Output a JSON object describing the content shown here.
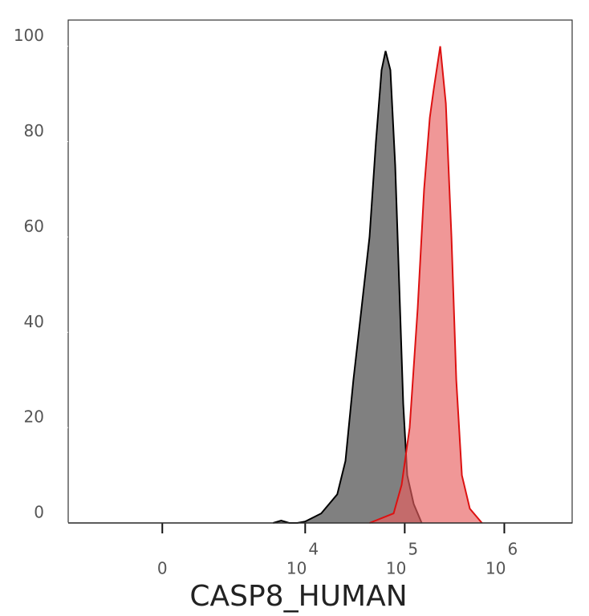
{
  "chart_data": {
    "type": "histogram-overlay",
    "x_label": "CASP8_HUMAN",
    "xscale": "biexponential",
    "xlim": [
      -3200,
      4800000
    ],
    "xticks": [
      0,
      {
        "value": 10000,
        "label": "10",
        "exponent": "4"
      },
      {
        "value": 100000,
        "label": "10",
        "exponent": "5"
      },
      {
        "value": 1000000,
        "label": "10",
        "exponent": "6"
      }
    ],
    "ylim": [
      0,
      105.5
    ],
    "yticks": [
      0,
      20,
      40,
      60,
      80,
      100
    ],
    "series": [
      {
        "color": "#000000",
        "fill": "#808080",
        "x": [
          4750,
          5720,
          6900,
          8320,
          10000,
          14500,
          21000,
          25400,
          30500,
          36800,
          44300,
          51400,
          58500,
          64200,
          71800,
          80300,
          88100,
          96600,
          106000,
          123000,
          148000
        ],
        "values": [
          0,
          0.5,
          0,
          0,
          0.3,
          2,
          6,
          13,
          30,
          45,
          60,
          80,
          95,
          99,
          95,
          75,
          50,
          25,
          10,
          4,
          0
        ]
      },
      {
        "color": "#dd1111",
        "fill": "#e8605f",
        "x": [
          44300,
          77400,
          93100,
          112000,
          135000,
          156600,
          178400,
          195700,
          227100,
          258700,
          294600,
          329200,
          374900,
          451000,
          596000
        ],
        "values": [
          0,
          2,
          8,
          20,
          45,
          70,
          85,
          91,
          100,
          88,
          60,
          30,
          10,
          3,
          0
        ]
      }
    ]
  }
}
